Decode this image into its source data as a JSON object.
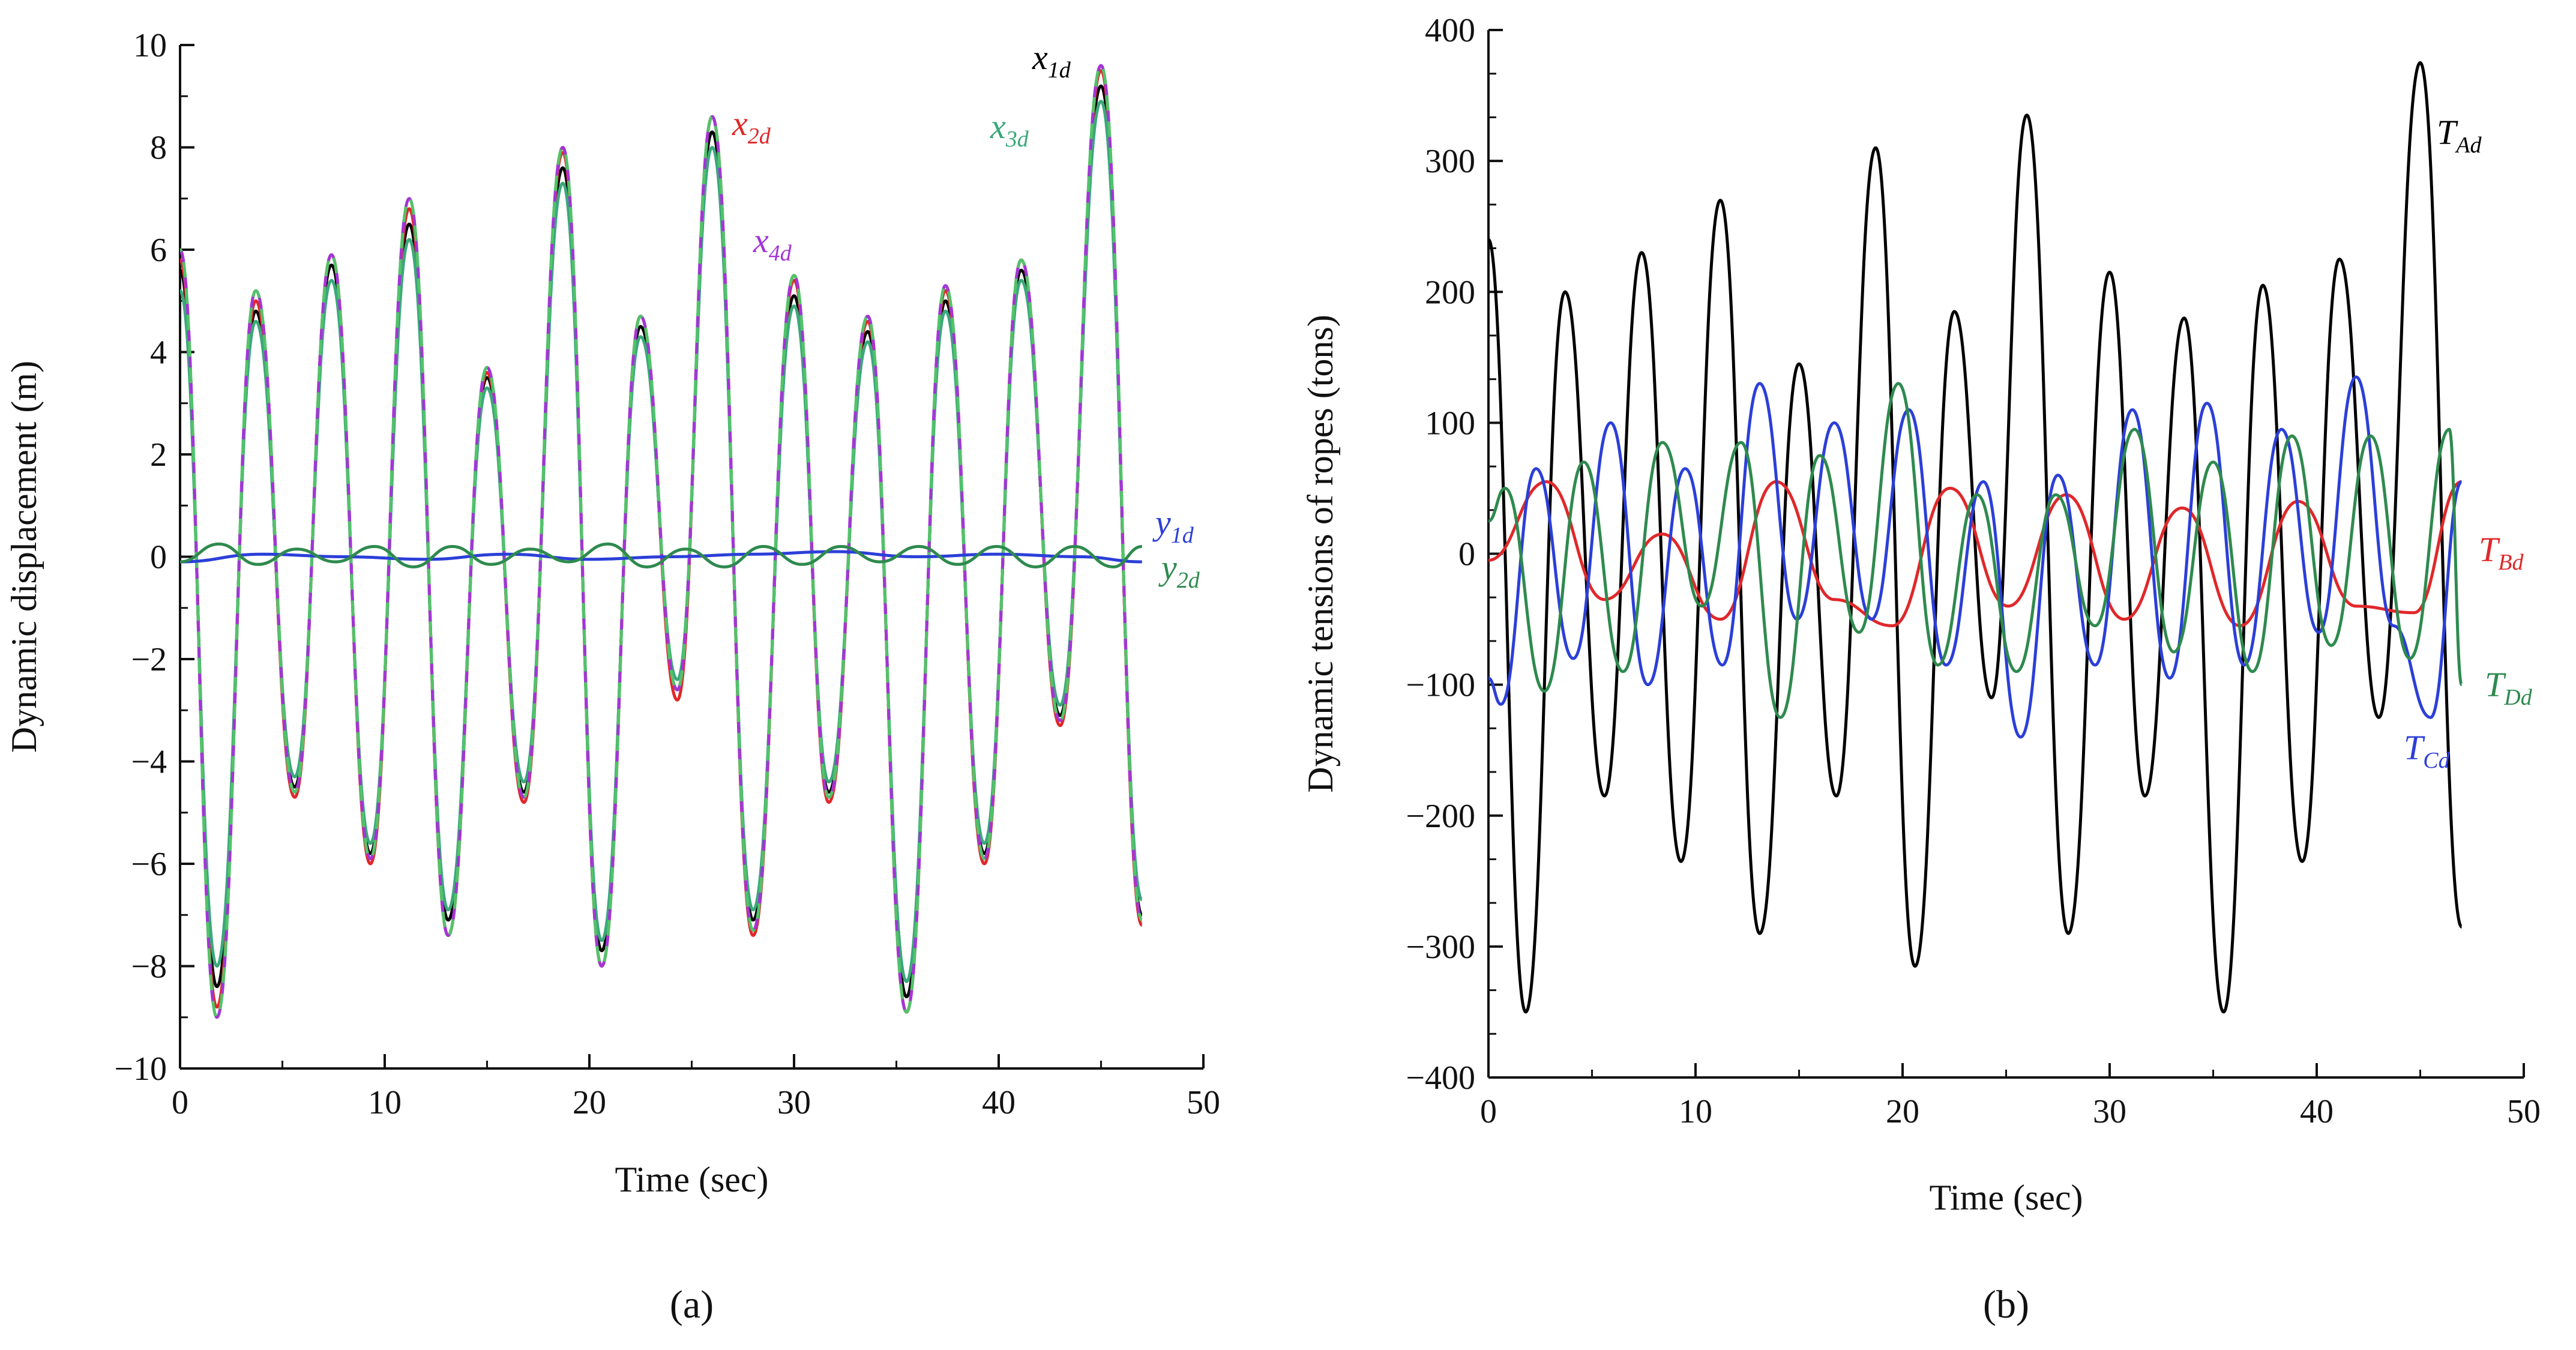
{
  "chart_data": [
    {
      "type": "line",
      "panel_label": "(a)",
      "xlabel": "Time (sec)",
      "ylabel": "Dynamic displacement (m)",
      "xlim": [
        0,
        50
      ],
      "ylim": [
        -10,
        10
      ],
      "xticks": [
        0,
        10,
        20,
        30,
        40,
        50
      ],
      "yticks": [
        -10,
        -8,
        -6,
        -4,
        -2,
        0,
        2,
        4,
        6,
        8,
        10
      ],
      "ytick_labels": [
        "−10",
        "−8",
        "−6",
        "−4",
        "−2",
        "0",
        "2",
        "4",
        "6",
        "8",
        "10"
      ],
      "grid": false,
      "series": [
        {
          "name": "x",
          "sub": "1d",
          "color": "#000000",
          "dash": "",
          "x": [
            0,
            1.8,
            3.7,
            5.6,
            7.4,
            9.3,
            11.2,
            13.1,
            15.0,
            16.8,
            18.7,
            20.6,
            22.5,
            24.3,
            26.0,
            28.0,
            30.0,
            31.7,
            33.6,
            35.5,
            37.4,
            39.3,
            41.1,
            43.0,
            45.0,
            47.0
          ],
          "y": [
            5.6,
            -8.4,
            4.8,
            -4.5,
            5.7,
            -5.8,
            6.5,
            -7.1,
            3.5,
            -4.6,
            7.6,
            -7.7,
            4.5,
            -2.6,
            8.3,
            -7.1,
            5.1,
            -4.6,
            4.4,
            -8.6,
            5.0,
            -5.8,
            5.6,
            -3.1,
            9.2,
            -7.0
          ]
        },
        {
          "name": "x",
          "sub": "2d",
          "color": "#e0282a",
          "dash": "",
          "x": [
            0,
            1.8,
            3.7,
            5.6,
            7.4,
            9.3,
            11.2,
            13.1,
            15.0,
            16.8,
            18.7,
            20.6,
            22.5,
            24.3,
            26.0,
            28.0,
            30.0,
            31.7,
            33.6,
            35.5,
            37.4,
            39.3,
            41.1,
            43.0,
            45.0,
            47.0
          ],
          "y": [
            5.8,
            -8.8,
            5.0,
            -4.7,
            5.9,
            -6.0,
            6.8,
            -7.4,
            3.6,
            -4.8,
            7.9,
            -8.0,
            4.7,
            -2.8,
            8.6,
            -7.4,
            5.4,
            -4.8,
            4.6,
            -8.9,
            5.2,
            -6.0,
            5.8,
            -3.3,
            9.5,
            -7.2
          ]
        },
        {
          "name": "x",
          "sub": "3d",
          "color": "#3aa87a",
          "dash": "",
          "x": [
            0,
            1.8,
            3.7,
            5.6,
            7.4,
            9.3,
            11.2,
            13.1,
            15.0,
            16.8,
            18.7,
            20.6,
            22.5,
            24.3,
            26.0,
            28.0,
            30.0,
            31.7,
            33.6,
            35.5,
            37.4,
            39.3,
            41.1,
            43.0,
            45.0,
            47.0
          ],
          "y": [
            5.2,
            -8.0,
            4.6,
            -4.3,
            5.4,
            -5.6,
            6.2,
            -6.9,
            3.3,
            -4.4,
            7.3,
            -7.5,
            4.3,
            -2.4,
            8.0,
            -6.9,
            4.9,
            -4.4,
            4.2,
            -8.3,
            4.8,
            -5.6,
            5.4,
            -2.9,
            8.9,
            -6.7
          ]
        },
        {
          "name": "x",
          "sub": "4d",
          "color": "#a335d6",
          "dash": "26 18",
          "x": [
            0,
            1.8,
            3.7,
            5.6,
            7.4,
            9.3,
            11.2,
            13.1,
            15.0,
            16.8,
            18.7,
            20.6,
            22.5,
            24.3,
            26.0,
            28.0,
            30.0,
            31.7,
            33.6,
            35.5,
            37.4,
            39.3,
            41.1,
            43.0,
            45.0,
            47.0
          ],
          "y": [
            6.0,
            -9.0,
            5.2,
            -4.6,
            5.9,
            -5.9,
            7.0,
            -7.4,
            3.7,
            -4.7,
            8.0,
            -8.0,
            4.7,
            -2.6,
            8.6,
            -7.3,
            5.5,
            -4.7,
            4.7,
            -8.9,
            5.3,
            -5.9,
            5.8,
            -3.2,
            9.6,
            -7.1
          ]
        },
        {
          "name": "y",
          "sub": "1d",
          "color": "#2b3fd8",
          "dash": "",
          "x": [
            0,
            4,
            8,
            12,
            16,
            20,
            24,
            28,
            32,
            36,
            40,
            44,
            47
          ],
          "y": [
            -0.1,
            0.05,
            0.0,
            -0.05,
            0.05,
            -0.05,
            0.0,
            0.05,
            0.1,
            0.0,
            0.05,
            0.0,
            -0.1
          ]
        },
        {
          "name": "y",
          "sub": "2d",
          "color": "#2e8a4e",
          "dash": "",
          "x": [
            0,
            1.9,
            3.8,
            5.7,
            7.6,
            9.5,
            11.4,
            13.3,
            15.2,
            17.1,
            19.0,
            20.9,
            22.8,
            24.7,
            26.6,
            28.5,
            30.4,
            32.3,
            34.2,
            36.1,
            38.0,
            39.9,
            41.8,
            43.7,
            45.6,
            47.0
          ],
          "y": [
            -0.1,
            0.25,
            -0.15,
            0.15,
            -0.1,
            0.2,
            -0.2,
            0.2,
            -0.15,
            0.15,
            -0.1,
            0.25,
            -0.2,
            0.15,
            -0.2,
            0.2,
            -0.15,
            0.2,
            -0.1,
            0.2,
            -0.15,
            0.2,
            -0.2,
            0.2,
            -0.2,
            0.2
          ]
        }
      ]
    },
    {
      "type": "line",
      "panel_label": "(b)",
      "xlabel": "Time (sec)",
      "ylabel": "Dynamic tensions of ropes (tons)",
      "xlim": [
        0,
        50
      ],
      "ylim": [
        -400,
        400
      ],
      "xticks": [
        0,
        10,
        20,
        30,
        40,
        50
      ],
      "yticks": [
        -400,
        -300,
        -200,
        -100,
        0,
        100,
        200,
        300,
        400
      ],
      "ytick_labels": [
        "−400",
        "−300",
        "−200",
        "−100",
        "0",
        "100",
        "200",
        "300",
        "400"
      ],
      "grid": false,
      "series": [
        {
          "name": "T",
          "sub": "Ad",
          "color": "#000000",
          "dash": "",
          "x": [
            0,
            1.8,
            3.7,
            5.6,
            7.4,
            9.3,
            11.2,
            13.1,
            15.0,
            16.8,
            18.7,
            20.6,
            22.5,
            24.3,
            26.0,
            28.0,
            30.0,
            31.7,
            33.6,
            35.5,
            37.4,
            39.3,
            41.1,
            43.0,
            45.0,
            47.0
          ],
          "y": [
            240,
            -350,
            200,
            -185,
            230,
            -235,
            270,
            -290,
            145,
            -185,
            310,
            -315,
            185,
            -110,
            335,
            -290,
            215,
            -185,
            180,
            -350,
            205,
            -235,
            225,
            -125,
            375,
            -285
          ]
        },
        {
          "name": "T",
          "sub": "Bd",
          "color": "#e0282a",
          "dash": "",
          "x": [
            0,
            2.8,
            5.6,
            8.4,
            11.2,
            13.9,
            16.7,
            19.5,
            22.3,
            25.1,
            27.9,
            30.7,
            33.5,
            36.3,
            39.1,
            41.9,
            44.7,
            47.0
          ],
          "y": [
            -5,
            55,
            -35,
            15,
            -50,
            55,
            -35,
            -55,
            50,
            -40,
            45,
            -50,
            35,
            -55,
            40,
            -40,
            -45,
            55
          ]
        },
        {
          "name": "T",
          "sub": "Cd",
          "color": "#2b3fd8",
          "dash": "",
          "x": [
            0,
            0.6,
            2.3,
            4.1,
            5.9,
            7.7,
            9.5,
            11.3,
            13.1,
            14.9,
            16.7,
            18.5,
            20.3,
            22.1,
            23.9,
            25.7,
            27.5,
            29.3,
            31.1,
            32.9,
            34.7,
            36.5,
            38.3,
            40.1,
            41.9,
            43.7,
            45.5,
            47.0
          ],
          "y": [
            -95,
            -115,
            65,
            -80,
            100,
            -100,
            65,
            -85,
            130,
            -50,
            100,
            -50,
            110,
            -85,
            55,
            -140,
            60,
            -85,
            110,
            -95,
            115,
            -85,
            95,
            -60,
            135,
            -55,
            -125,
            55
          ]
        },
        {
          "name": "T",
          "sub": "Dd",
          "color": "#2e8a4e",
          "dash": "",
          "x": [
            0,
            0.8,
            2.7,
            4.6,
            6.5,
            8.4,
            10.3,
            12.2,
            14.1,
            16.0,
            17.9,
            19.8,
            21.7,
            23.6,
            25.5,
            27.4,
            29.3,
            31.2,
            33.1,
            35.0,
            36.9,
            38.8,
            40.7,
            42.6,
            44.5,
            46.4,
            47.0
          ],
          "y": [
            25,
            50,
            -105,
            70,
            -90,
            85,
            -40,
            85,
            -125,
            75,
            -60,
            130,
            -85,
            45,
            -90,
            45,
            -55,
            95,
            -75,
            70,
            -90,
            90,
            -70,
            90,
            -80,
            95,
            -100
          ]
        }
      ]
    }
  ]
}
